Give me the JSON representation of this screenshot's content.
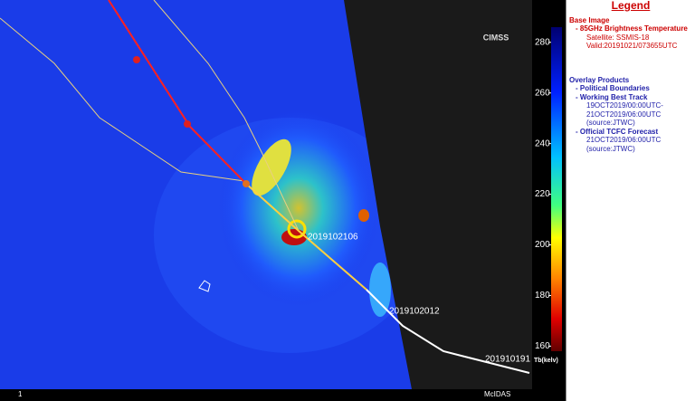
{
  "image": {
    "logo": "CIMSS",
    "labels": [
      "2019102106",
      "2019102012",
      "201910191"
    ],
    "footer_left": "1",
    "footer_right": "McIDAS"
  },
  "colorbar": {
    "range": [
      158,
      286
    ],
    "ticks": [
      280,
      260,
      240,
      220,
      200,
      180,
      160
    ],
    "label": "Tb(kelv)"
  },
  "legend": {
    "title": "Legend",
    "base_heading": "Base Image",
    "base_items": [
      "- 85GHz Brightness Temperature",
      "Satellite: SSMIS-18",
      "Valid:20191021/073655UTC"
    ],
    "overlay_heading": "Overlay Products",
    "overlay_items": [
      "- Political Boundaries",
      "- Working Best Track",
      "19OCT2019/00:00UTC-",
      "21OCT2019/06:00UTC",
      "(source:JTWC)",
      "- Official TCFC Forecast",
      "21OCT2019/06:00UTC",
      "(source:JTWC)"
    ]
  }
}
